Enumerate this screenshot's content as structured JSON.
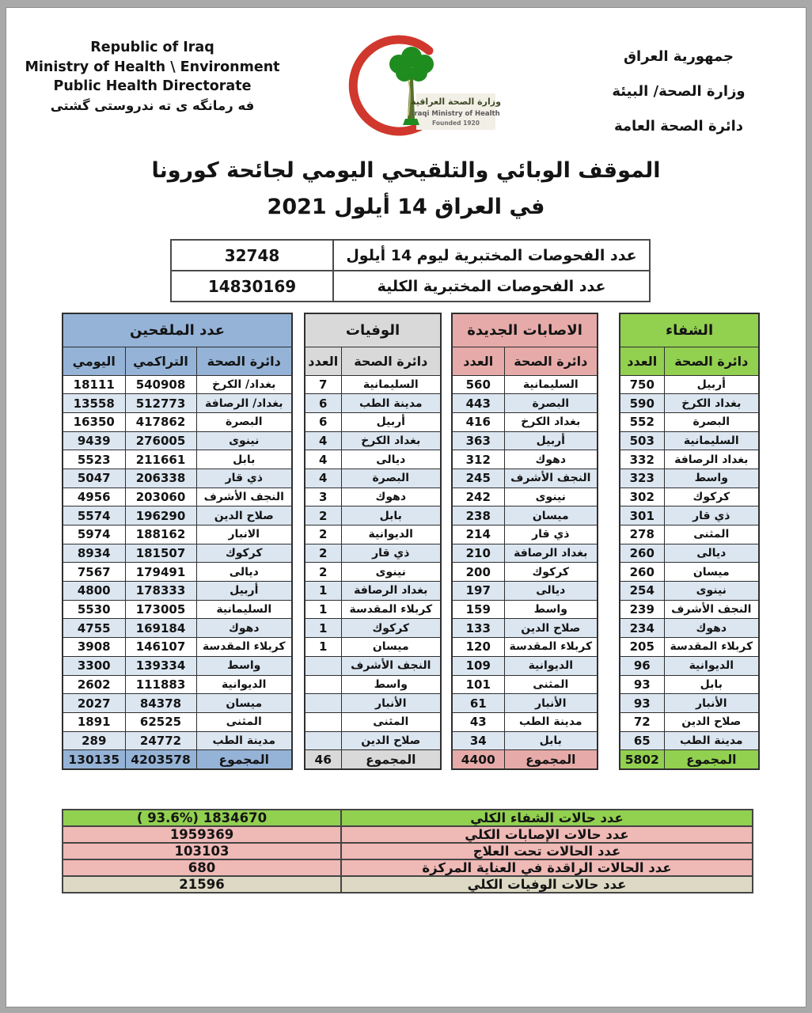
{
  "header": {
    "left": [
      "Republic of Iraq",
      "Ministry of Health \\ Environment",
      "Public Health Directorate",
      "فه رمانگه ى ته ندروستى گشتى"
    ],
    "right": [
      "جمهورية العراق",
      "وزارة الصحة/ البيئة",
      "دائرة الصحة العامة"
    ],
    "logo": {
      "caption_ar": "وزارة الصحة العراقية",
      "caption_en": "Iraqi Ministry of Health",
      "founded": "Founded 1920"
    }
  },
  "title": {
    "line1": "الموقف الوبائي والتلقيحي اليومي لجائحة كورونا",
    "line2": "في العراق  14  أيلول 2021"
  },
  "tests": {
    "rows": [
      {
        "label": "عدد الفحوصات المختبرية  ليوم 14 أيلول",
        "value": "32748"
      },
      {
        "label": "عدد الفحوصات المختبرية الكلية",
        "value": "14830169"
      }
    ]
  },
  "region_tables": [
    {
      "id": "vaccinated",
      "title": "عدد الملقحين",
      "accent": "#95B3D7",
      "columns": [
        "اليومي",
        "التراكمي",
        "دائرة الصحة"
      ],
      "rows": [
        [
          "18111",
          "540908",
          "بغداد/ الكرخ"
        ],
        [
          "13558",
          "512773",
          "بغداد/ الرصافة"
        ],
        [
          "16350",
          "417862",
          "البصرة"
        ],
        [
          "9439",
          "276005",
          "نينوى"
        ],
        [
          "5523",
          "211661",
          "بابل"
        ],
        [
          "5047",
          "206338",
          "ذي قار"
        ],
        [
          "4956",
          "203060",
          "النجف الأشرف"
        ],
        [
          "5574",
          "196290",
          "صلاح الدين"
        ],
        [
          "5974",
          "188162",
          "الانبار"
        ],
        [
          "8934",
          "181507",
          "كركوك"
        ],
        [
          "7567",
          "179491",
          "ديالى"
        ],
        [
          "4800",
          "178333",
          "أربيل"
        ],
        [
          "5530",
          "173005",
          "السليمانية"
        ],
        [
          "4755",
          "169184",
          "دهوك"
        ],
        [
          "3908",
          "146107",
          "كربلاء المقدسة"
        ],
        [
          "3300",
          "139334",
          "واسط"
        ],
        [
          "2602",
          "111883",
          "الديوانية"
        ],
        [
          "2027",
          "84378",
          "ميسان"
        ],
        [
          "1891",
          "62525",
          "المثنى"
        ],
        [
          "289",
          "24772",
          "مدينة الطب"
        ]
      ],
      "total": [
        "130135",
        "4203578",
        "المجموع"
      ]
    },
    {
      "id": "deaths",
      "title": "الوفيات",
      "accent": "#D9D9D9",
      "columns": [
        "العدد",
        "دائرة الصحة"
      ],
      "rows": [
        [
          "7",
          "السليمانية"
        ],
        [
          "6",
          "مدينة الطب"
        ],
        [
          "6",
          "أربيل"
        ],
        [
          "4",
          "بغداد الكرخ"
        ],
        [
          "4",
          "ديالى"
        ],
        [
          "4",
          "البصرة"
        ],
        [
          "3",
          "دهوك"
        ],
        [
          "2",
          "بابل"
        ],
        [
          "2",
          "الديوانية"
        ],
        [
          "2",
          "ذي قار"
        ],
        [
          "2",
          "نينوى"
        ],
        [
          "1",
          "بغداد الرصافة"
        ],
        [
          "1",
          "كربلاء المقدسة"
        ],
        [
          "1",
          "كركوك"
        ],
        [
          "1",
          "ميسان"
        ],
        [
          "",
          "النجف الأشرف"
        ],
        [
          "",
          "واسط"
        ],
        [
          "",
          "الأنبار"
        ],
        [
          "",
          "المثنى"
        ],
        [
          "",
          "صلاح الدين"
        ]
      ],
      "total": [
        "46",
        "المجموع"
      ]
    },
    {
      "id": "new_cases",
      "title": "الاصابات الجديدة",
      "accent": "#E6ABA9",
      "columns": [
        "العدد",
        "دائرة الصحة"
      ],
      "rows": [
        [
          "560",
          "السليمانية"
        ],
        [
          "443",
          "البصرة"
        ],
        [
          "416",
          "بغداد الكرخ"
        ],
        [
          "363",
          "أربيل"
        ],
        [
          "312",
          "دهوك"
        ],
        [
          "245",
          "النجف الأشرف"
        ],
        [
          "242",
          "نينوى"
        ],
        [
          "238",
          "ميسان"
        ],
        [
          "214",
          "ذي قار"
        ],
        [
          "210",
          "بغداد الرصافة"
        ],
        [
          "200",
          "كركوك"
        ],
        [
          "197",
          "ديالى"
        ],
        [
          "159",
          "واسط"
        ],
        [
          "133",
          "صلاح الدين"
        ],
        [
          "120",
          "كربلاء المقدسة"
        ],
        [
          "109",
          "الديوانية"
        ],
        [
          "101",
          "المثنى"
        ],
        [
          "61",
          "الأنبار"
        ],
        [
          "43",
          "مدينة الطب"
        ],
        [
          "34",
          "بابل"
        ]
      ],
      "total": [
        "4400",
        "المجموع"
      ]
    },
    {
      "id": "recovery",
      "title": "الشفاء",
      "accent": "#92D050",
      "columns": [
        "العدد",
        "دائرة الصحة"
      ],
      "rows": [
        [
          "750",
          "أربيل"
        ],
        [
          "590",
          "بغداد الكرخ"
        ],
        [
          "552",
          "البصرة"
        ],
        [
          "503",
          "السليمانية"
        ],
        [
          "332",
          "بغداد الرصافة"
        ],
        [
          "323",
          "واسط"
        ],
        [
          "302",
          "كركوك"
        ],
        [
          "301",
          "ذي قار"
        ],
        [
          "278",
          "المثنى"
        ],
        [
          "260",
          "ديالى"
        ],
        [
          "260",
          "ميسان"
        ],
        [
          "254",
          "نينوى"
        ],
        [
          "239",
          "النجف الأشرف"
        ],
        [
          "234",
          "دهوك"
        ],
        [
          "205",
          "كربلاء المقدسة"
        ],
        [
          "96",
          "الديوانية"
        ],
        [
          "93",
          "بابل"
        ],
        [
          "93",
          "الأنبار"
        ],
        [
          "72",
          "صلاح الدين"
        ],
        [
          "65",
          "مدينة الطب"
        ]
      ],
      "total": [
        "5802",
        "المجموع"
      ]
    }
  ],
  "summary": {
    "rows": [
      {
        "label": "عدد حالات الشفاء الكلي",
        "value": "( 93.6%)  1834670",
        "tone": "green"
      },
      {
        "label": "عدد حالات الإصابات الكلي",
        "value": "1959369",
        "tone": "pink"
      },
      {
        "label": "عدد الحالات تحت العلاج",
        "value": "103103",
        "tone": "pink"
      },
      {
        "label": "عدد الحالات الراقدة في العناية المركزة",
        "value": "680",
        "tone": "pink"
      },
      {
        "label": "عدد حالات الوفيات الكلي",
        "value": "21596",
        "tone": "tan"
      }
    ]
  },
  "colors": {
    "vaccinated_accent": "#95B3D7",
    "deaths_accent": "#D9D9D9",
    "new_cases_accent": "#E6ABA9",
    "recovery_accent": "#92D050",
    "row_alt": "#DCE6F1",
    "summary_green": "#92D050",
    "summary_pink": "#EFB9B6",
    "summary_tan": "#DDD9C4",
    "crescent_red": "#D0382D",
    "palm_green": "#1F8C1F"
  }
}
